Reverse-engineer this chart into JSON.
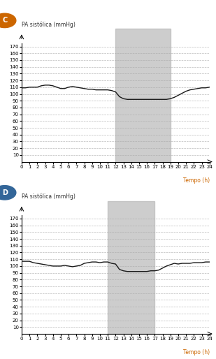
{
  "title_C": "C",
  "title_D": "D",
  "ylabel": "PA sistólica (mmHg)",
  "xlabel": "Tempo (h)",
  "ylim": [
    0,
    175
  ],
  "xlim": [
    0,
    24
  ],
  "yticks": [
    10,
    20,
    30,
    40,
    50,
    60,
    70,
    80,
    90,
    100,
    110,
    120,
    130,
    140,
    150,
    160,
    170
  ],
  "xticks": [
    0,
    1,
    2,
    3,
    4,
    5,
    6,
    7,
    8,
    9,
    10,
    11,
    12,
    13,
    14,
    15,
    16,
    17,
    18,
    19,
    20,
    21,
    22,
    23,
    24
  ],
  "shade_C": [
    12,
    19
  ],
  "shade_D": [
    11,
    17
  ],
  "line_color": "#1a1a1a",
  "shade_color": "#b8b8b8",
  "shade_alpha": 0.7,
  "grid_color": "#aaaaaa",
  "bg_color": "#ffffff",
  "xlabel_color": "#cc6600",
  "circle_color_C": "#cc6600",
  "circle_color_D": "#336699",
  "x_C": [
    0,
    0.5,
    1,
    1.5,
    2,
    2.5,
    3,
    3.5,
    4,
    4.5,
    5,
    5.5,
    6,
    6.5,
    7,
    7.5,
    8,
    8.5,
    9,
    9.5,
    10,
    10.5,
    11,
    11.5,
    12,
    12.5,
    13,
    13.5,
    14,
    14.5,
    15,
    15.5,
    16,
    16.5,
    17,
    17.5,
    18,
    18.5,
    19,
    19.5,
    20,
    20.5,
    21,
    21.5,
    22,
    22.5,
    23,
    23.5,
    24
  ],
  "y_C": [
    109,
    109,
    110,
    110,
    110,
    112,
    113,
    113,
    112,
    110,
    108,
    108,
    110,
    111,
    110,
    109,
    108,
    107,
    107,
    106,
    106,
    106,
    106,
    105,
    103,
    96,
    93,
    92,
    92,
    92,
    92,
    92,
    92,
    92,
    92,
    92,
    92,
    92,
    93,
    95,
    98,
    101,
    104,
    106,
    107,
    108,
    109,
    109,
    110
  ],
  "x_D": [
    0,
    0.5,
    1,
    1.5,
    2,
    2.5,
    3,
    3.5,
    4,
    4.5,
    5,
    5.5,
    6,
    6.5,
    7,
    7.5,
    8,
    8.5,
    9,
    9.5,
    10,
    10.5,
    11,
    11.5,
    12,
    12.5,
    13,
    13.5,
    14,
    14.5,
    15,
    15.5,
    16,
    16.5,
    17,
    17.5,
    18,
    18.5,
    19,
    19.5,
    20,
    20.5,
    21,
    21.5,
    22,
    22.5,
    23,
    23.5,
    24
  ],
  "y_D": [
    107,
    107,
    107,
    105,
    104,
    103,
    102,
    101,
    100,
    100,
    100,
    101,
    100,
    99,
    100,
    101,
    104,
    105,
    106,
    106,
    105,
    106,
    106,
    104,
    103,
    95,
    93,
    92,
    92,
    92,
    92,
    92,
    92,
    93,
    93,
    94,
    97,
    100,
    102,
    104,
    103,
    104,
    104,
    104,
    105,
    105,
    105,
    106,
    106
  ]
}
